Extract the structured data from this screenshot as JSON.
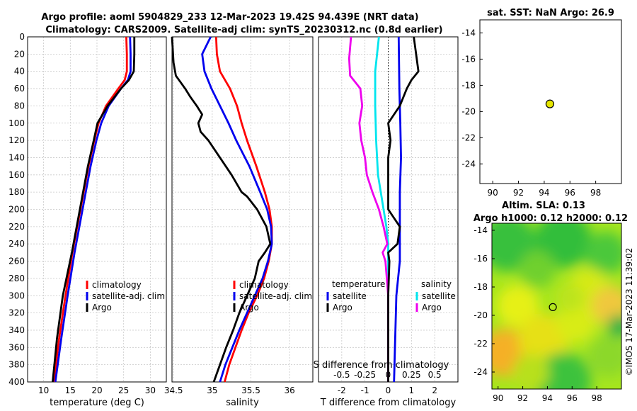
{
  "colors": {
    "climatology": "#ff0000",
    "satellite": "#0000ee",
    "argo": "#000000",
    "cyan": "#00e5ee",
    "magenta": "#ee00ee",
    "grid": "#c8c8c8"
  },
  "title_line1": "Argo profile: aoml 5904829_233 12-Mar-2023 19.42S 94.439E (NRT data)",
  "title_line2": "Climatology: CARS2009. Satellite-adj clim: synTS_20230312.nc (0.8d earlier)",
  "copyright": "©IMOS 17-Mar-2023 11:39:02",
  "chart_data": [
    {
      "name": "temperature",
      "type": "line",
      "xlabel": "temperature (deg C)",
      "xlim": [
        7,
        33
      ],
      "xticks": [
        "10",
        "15",
        "20",
        "25",
        "30"
      ],
      "ylim": [
        400,
        0
      ],
      "yticks": [
        "0",
        "20",
        "40",
        "60",
        "80",
        "100",
        "120",
        "140",
        "160",
        "180",
        "200",
        "220",
        "240",
        "260",
        "280",
        "300",
        "320",
        "340",
        "360",
        "380",
        "400"
      ],
      "legend": [
        "climatology",
        "satellite-adj. clim",
        "Argo"
      ],
      "series": [
        {
          "name": "climatology",
          "depth": [
            0,
            20,
            40,
            50,
            60,
            80,
            100,
            120,
            150,
            200,
            250,
            300,
            350,
            400
          ],
          "values": [
            25.5,
            25.6,
            25.6,
            25.2,
            24,
            21.7,
            20.3,
            19.5,
            18.4,
            16.9,
            15.4,
            14.1,
            12.9,
            11.9
          ]
        },
        {
          "name": "satellite-adj. clim",
          "depth": [
            0,
            20,
            40,
            50,
            60,
            80,
            100,
            120,
            150,
            200,
            250,
            300,
            350,
            400
          ],
          "values": [
            26.2,
            26.3,
            26.3,
            25.8,
            24.5,
            22.2,
            20.8,
            19.9,
            18.8,
            17.3,
            15.8,
            14.5,
            13.3,
            12.2
          ]
        },
        {
          "name": "Argo",
          "depth": [
            0,
            20,
            40,
            50,
            60,
            80,
            100,
            120,
            150,
            200,
            250,
            300,
            350,
            400
          ],
          "values": [
            27.0,
            27.0,
            26.9,
            26.0,
            24.5,
            22.0,
            20.1,
            19.4,
            18.3,
            16.8,
            15.3,
            13.6,
            12.5,
            11.7
          ]
        }
      ]
    },
    {
      "name": "salinity",
      "type": "line",
      "xlabel": "salinity",
      "xlim": [
        34.48,
        36.3
      ],
      "xticks": [
        "34.5",
        "35",
        "35.5",
        "36"
      ],
      "ylim": [
        400,
        0
      ],
      "legend": [
        "climatology",
        "satellite-adj. clim",
        "Argo"
      ],
      "series": [
        {
          "name": "climatology",
          "depth": [
            0,
            20,
            40,
            60,
            80,
            100,
            120,
            150,
            180,
            200,
            220,
            240,
            260,
            280,
            300,
            320,
            340,
            360,
            380,
            400
          ],
          "values": [
            35.05,
            35.06,
            35.1,
            35.23,
            35.32,
            35.38,
            35.45,
            35.57,
            35.68,
            35.74,
            35.77,
            35.77,
            35.73,
            35.67,
            35.58,
            35.47,
            35.38,
            35.3,
            35.22,
            35.16
          ]
        },
        {
          "name": "satellite-adj. clim",
          "depth": [
            0,
            20,
            40,
            60,
            80,
            100,
            120,
            150,
            180,
            200,
            220,
            240,
            260,
            280,
            300,
            320,
            340,
            360,
            380,
            400
          ],
          "values": [
            34.98,
            34.87,
            34.9,
            34.99,
            35.1,
            35.21,
            35.31,
            35.48,
            35.62,
            35.71,
            35.76,
            35.77,
            35.72,
            35.65,
            35.55,
            35.45,
            35.35,
            35.26,
            35.17,
            35.1
          ]
        },
        {
          "name": "Argo",
          "depth": [
            0,
            30,
            45,
            60,
            70,
            80,
            90,
            100,
            110,
            120,
            140,
            160,
            180,
            185,
            200,
            220,
            240,
            250,
            260,
            280,
            300,
            320,
            340,
            360,
            380,
            400
          ],
          "values": [
            34.48,
            34.5,
            34.53,
            34.65,
            34.72,
            34.8,
            34.87,
            34.82,
            34.85,
            34.95,
            35.1,
            35.25,
            35.38,
            35.45,
            35.58,
            35.7,
            35.75,
            35.68,
            35.6,
            35.55,
            35.45,
            35.35,
            35.27,
            35.18,
            35.1,
            35.02
          ]
        }
      ]
    },
    {
      "name": "difference",
      "type": "line",
      "xlabel": "T difference from climatology",
      "xlabel_top": "S difference from climatology",
      "xlim": [
        -3,
        3
      ],
      "xticks": [
        "-2",
        "-1",
        "0",
        "1",
        "2"
      ],
      "xticks_s": [
        "-0.5",
        "-0.25",
        "0",
        "0.25",
        "0.5"
      ],
      "ylim": [
        400,
        0
      ],
      "legend_titles": [
        "temperature",
        "salinity"
      ],
      "legend": [
        "satellite",
        "Argo",
        "satellite",
        "Argo"
      ],
      "series": [
        {
          "name": "temperature satellite",
          "depth": [
            0,
            60,
            100,
            140,
            180,
            220,
            240,
            260,
            300,
            400
          ],
          "values": [
            0.45,
            0.48,
            0.52,
            0.55,
            0.5,
            0.5,
            0.5,
            0.5,
            0.35,
            0.25
          ]
        },
        {
          "name": "temperature Argo",
          "depth": [
            0,
            20,
            40,
            50,
            60,
            80,
            100,
            120,
            140,
            160,
            180,
            200,
            220,
            240,
            250,
            260,
            300,
            350,
            400
          ],
          "values": [
            1.1,
            1.2,
            1.3,
            1.0,
            0.8,
            0.5,
            0.0,
            0.1,
            0.0,
            0.0,
            0.0,
            0.0,
            0.5,
            0.4,
            0.0,
            0.05,
            0.0,
            0.0,
            0.0
          ]
        },
        {
          "name": "salinity satellite",
          "depth": [
            0,
            40,
            80,
            120,
            160,
            200,
            220,
            240,
            260,
            300,
            400
          ],
          "values": [
            -0.1,
            -0.14,
            -0.14,
            -0.13,
            -0.11,
            -0.05,
            -0.02,
            0.0,
            0.0,
            0.0,
            0.0
          ]
        },
        {
          "name": "salinity Argo",
          "depth": [
            0,
            25,
            45,
            60,
            80,
            100,
            110,
            120,
            140,
            160,
            180,
            200,
            220,
            240,
            250,
            260,
            300,
            400
          ],
          "values": [
            -0.4,
            -0.42,
            -0.41,
            -0.3,
            -0.28,
            -0.31,
            -0.3,
            -0.29,
            -0.25,
            -0.23,
            -0.17,
            -0.1,
            -0.05,
            -0.01,
            -0.06,
            -0.03,
            0.0,
            0.0
          ]
        }
      ]
    },
    {
      "name": "sst",
      "type": "scatter",
      "title": "sat. SST: NaN Argo: 26.9",
      "xlim": [
        89,
        100
      ],
      "xticks": [
        "90",
        "92",
        "94",
        "96",
        "98"
      ],
      "ylim": [
        -25.5,
        -13
      ],
      "yticks": [
        "-14",
        "-16",
        "-18",
        "-20",
        "-22",
        "-24"
      ],
      "point": {
        "lon": 94.44,
        "lat": -19.42,
        "color": "#e6e600"
      }
    },
    {
      "name": "altimetry",
      "type": "heatmap",
      "title1": "Altim. SLA: 0.13",
      "title2": "Argo h1000: 0.12 h2000: 0.12",
      "xlim": [
        89.5,
        100
      ],
      "xticks": [
        "90",
        "92",
        "94",
        "96",
        "98"
      ],
      "ylim": [
        -25.2,
        -13.5
      ],
      "yticks": [
        "-14",
        "-16",
        "-18",
        "-20",
        "-22",
        "-24"
      ],
      "point": {
        "lon": 94.44,
        "lat": -19.42
      }
    }
  ]
}
